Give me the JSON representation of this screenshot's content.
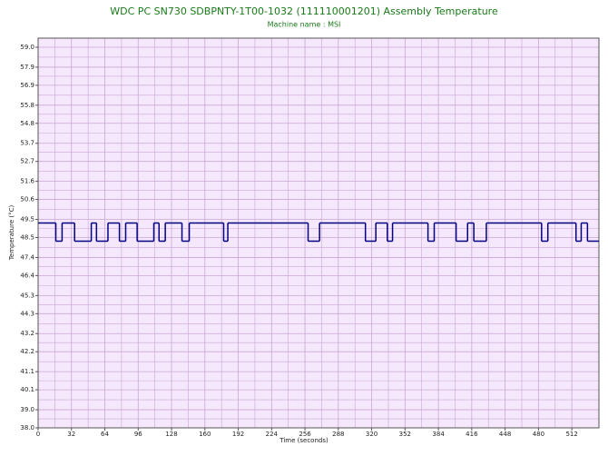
{
  "chart_data": {
    "type": "step",
    "title": "WDC PC SN730 SDBPNTY-1T00-1032 (111110001201) Assembly Temperature",
    "subtitle": "Machine name : MSI",
    "x_label": "Time (seconds)",
    "y_label": "Temperature (°C)",
    "x": [
      0,
      17,
      23,
      35,
      51,
      56,
      67,
      78,
      84,
      95,
      111,
      116,
      122,
      138,
      145,
      178,
      182,
      259,
      270,
      314,
      324,
      335,
      340,
      374,
      380,
      401,
      412,
      418,
      430,
      483,
      489,
      516,
      521,
      527
    ],
    "series": [
      {
        "color": "#000080",
        "values": [
          49.3,
          48.3,
          49.3,
          48.3,
          49.3,
          48.3,
          49.3,
          48.3,
          49.3,
          48.3,
          49.3,
          48.3,
          49.3,
          48.3,
          49.3,
          48.3,
          49.3,
          48.3,
          49.3,
          48.3,
          49.3,
          48.3,
          49.3,
          48.3,
          49.3,
          48.3,
          49.3,
          48.3,
          49.3,
          48.3,
          49.3,
          48.3,
          49.3,
          48.3
        ]
      }
    ],
    "xlim": [
      0,
      538
    ],
    "ylim": [
      38,
      59.5
    ],
    "xticks": [
      0,
      32,
      64,
      96,
      128,
      160,
      192,
      224,
      256,
      288,
      320,
      352,
      384,
      416,
      448,
      480,
      512
    ],
    "yticks": [
      {
        "value": 38,
        "label": "38.0"
      },
      {
        "value": 39,
        "label": "39.0"
      },
      {
        "value": 40.1,
        "label": "40.1"
      },
      {
        "value": 41.1,
        "label": "41.1"
      },
      {
        "value": 42.2,
        "label": "42.2"
      },
      {
        "value": 43.2,
        "label": "43.2"
      },
      {
        "value": 44.3,
        "label": "44.3"
      },
      {
        "value": 45.3,
        "label": "45.3"
      },
      {
        "value": 46.4,
        "label": "46.4"
      },
      {
        "value": 47.4,
        "label": "47.4"
      },
      {
        "value": 48.5,
        "label": "48.5"
      },
      {
        "value": 49.5,
        "label": "49.5"
      },
      {
        "value": 50.6,
        "label": "50.6"
      },
      {
        "value": 51.6,
        "label": "51.6"
      },
      {
        "value": 52.7,
        "label": "52.7"
      },
      {
        "value": 53.7,
        "label": "53.7"
      },
      {
        "value": 54.8,
        "label": "54.8"
      },
      {
        "value": 55.8,
        "label": "55.8"
      },
      {
        "value": 56.9,
        "label": "56.9"
      },
      {
        "value": 57.9,
        "label": "57.9"
      },
      {
        "value": 59,
        "label": "59.0"
      }
    ],
    "grid": true,
    "background": "#f6e8fc",
    "grid_color": "#c9a6d4"
  }
}
